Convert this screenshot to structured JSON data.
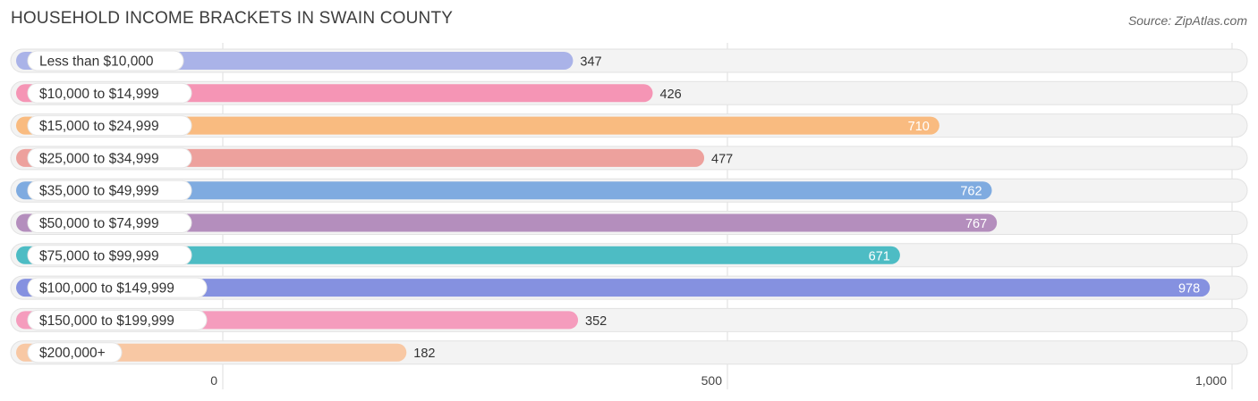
{
  "header": {
    "title": "HOUSEHOLD INCOME BRACKETS IN SWAIN COUNTY",
    "source": "Source: ZipAtlas.com"
  },
  "chart_data": {
    "type": "bar",
    "orientation": "horizontal",
    "title": "HOUSEHOLD INCOME BRACKETS IN SWAIN COUNTY",
    "categories": [
      "Less than $10,000",
      "$10,000 to $14,999",
      "$15,000 to $24,999",
      "$25,000 to $34,999",
      "$35,000 to $49,999",
      "$50,000 to $74,999",
      "$75,000 to $99,999",
      "$100,000 to $149,999",
      "$150,000 to $199,999",
      "$200,000+"
    ],
    "values": [
      347,
      426,
      710,
      477,
      762,
      767,
      671,
      978,
      352,
      182
    ],
    "value_labels": [
      "347",
      "426",
      "710",
      "477",
      "762",
      "767",
      "671",
      "978",
      "352",
      "182"
    ],
    "colors": [
      "#aab3e8",
      "#f595b5",
      "#f9bb80",
      "#eda19d",
      "#7fabe0",
      "#b48ebd",
      "#4dbcc4",
      "#8591e0",
      "#f59cbd",
      "#f8c8a4"
    ],
    "xlim": [
      0,
      1000
    ],
    "x_ticks": [
      0,
      500,
      1000
    ],
    "x_tick_labels": [
      "0",
      "500",
      "1,000"
    ],
    "grid": true
  }
}
